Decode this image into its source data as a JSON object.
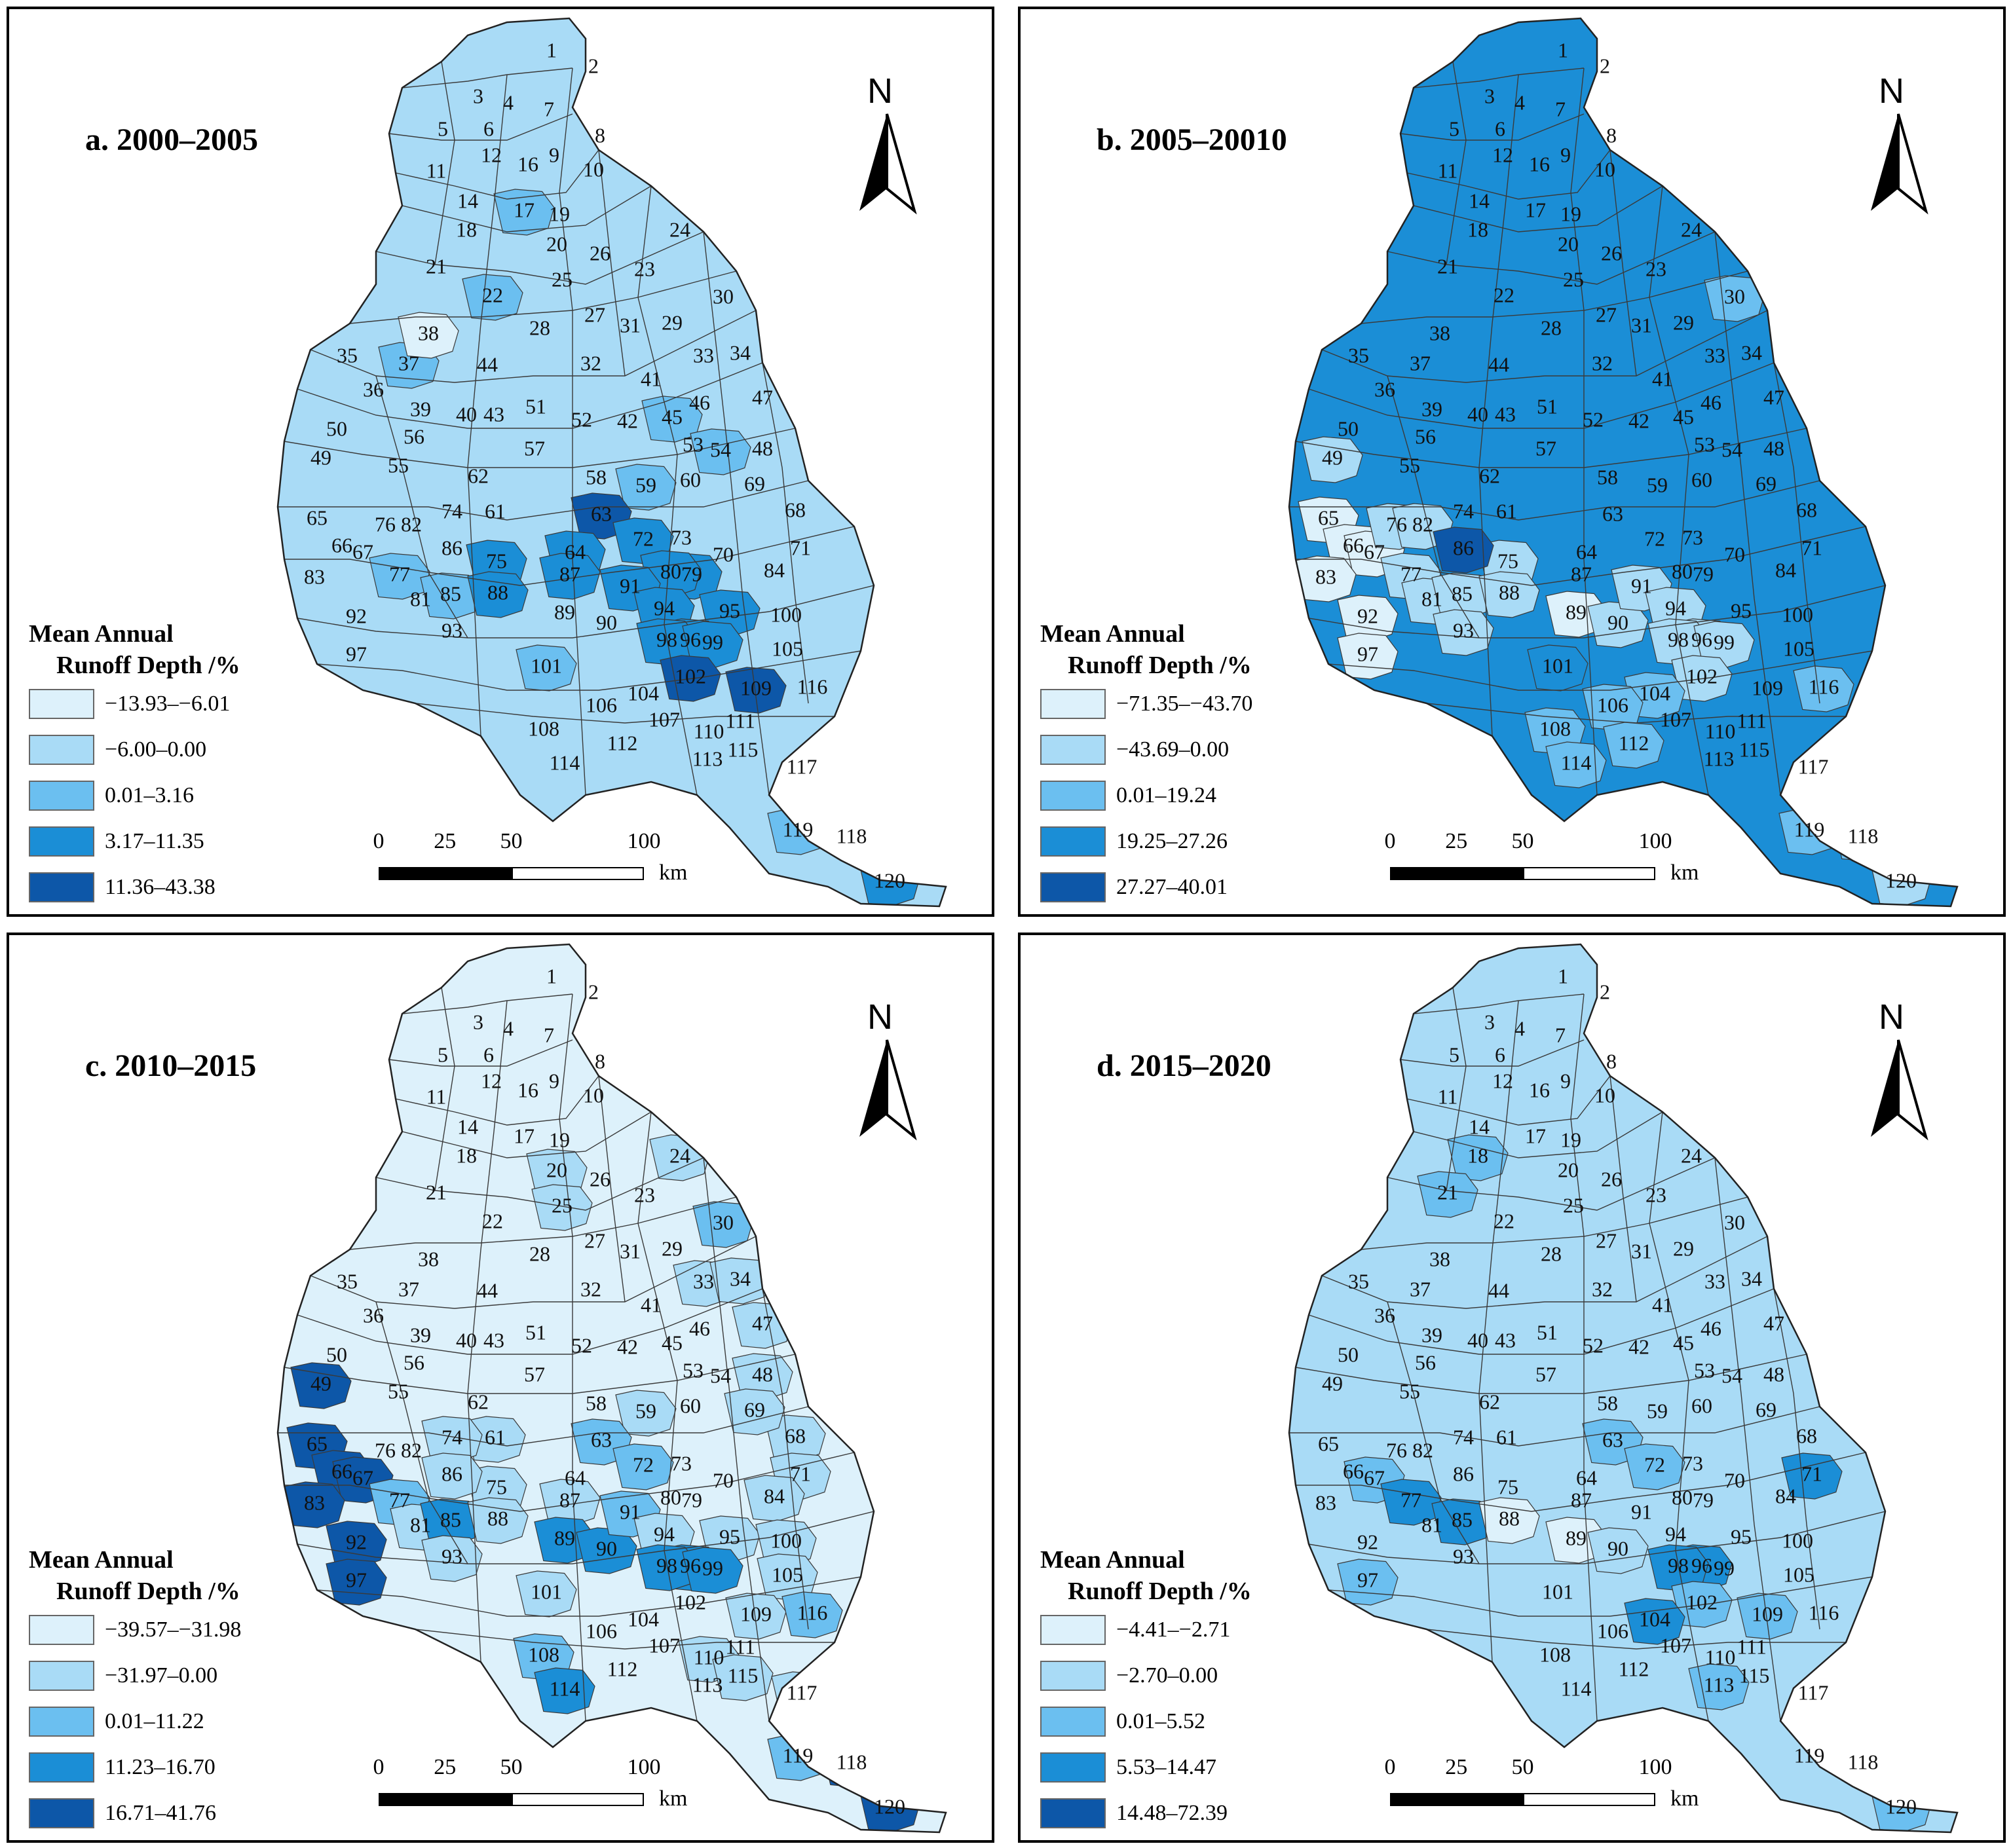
{
  "panels": [
    {
      "id": "a",
      "title": "a. 2000–2005",
      "legend": {
        "title_line1": "Mean Annual",
        "title_line2": "Runoff Depth /%",
        "classes": [
          {
            "label": "−13.93–−6.01",
            "color": "#ddf1fb"
          },
          {
            "label": "−6.00–0.00",
            "color": "#a9dbf6"
          },
          {
            "label": "0.01–3.16",
            "color": "#6bbff0"
          },
          {
            "label": "3.17–11.35",
            "color": "#1b8ed6"
          },
          {
            "label": "11.36–43.38",
            "color": "#0d57a8"
          }
        ]
      }
    },
    {
      "id": "b",
      "title": "b. 2005–20010",
      "legend": {
        "title_line1": "Mean Annual",
        "title_line2": "Runoff Depth /%",
        "classes": [
          {
            "label": "−71.35–−43.70",
            "color": "#ddf1fb"
          },
          {
            "label": "−43.69–0.00",
            "color": "#a9dbf6"
          },
          {
            "label": "0.01–19.24",
            "color": "#6bbff0"
          },
          {
            "label": "19.25–27.26",
            "color": "#1b8ed6"
          },
          {
            "label": "27.27–40.01",
            "color": "#0d57a8"
          }
        ]
      }
    },
    {
      "id": "c",
      "title": "c. 2010–2015",
      "legend": {
        "title_line1": "Mean Annual",
        "title_line2": "Runoff Depth /%",
        "classes": [
          {
            "label": "−39.57–−31.98",
            "color": "#ddf1fb"
          },
          {
            "label": "−31.97–0.00",
            "color": "#a9dbf6"
          },
          {
            "label": "0.01–11.22",
            "color": "#6bbff0"
          },
          {
            "label": "11.23–16.70",
            "color": "#1b8ed6"
          },
          {
            "label": "16.71–41.76",
            "color": "#0d57a8"
          }
        ]
      }
    },
    {
      "id": "d",
      "title": "d. 2015–2020",
      "legend": {
        "title_line1": "Mean Annual",
        "title_line2": "Runoff Depth /%",
        "classes": [
          {
            "label": "−4.41–−2.71",
            "color": "#ddf1fb"
          },
          {
            "label": "−2.70–0.00",
            "color": "#a9dbf6"
          },
          {
            "label": "0.01–5.52",
            "color": "#6bbff0"
          },
          {
            "label": "5.53–14.47",
            "color": "#1b8ed6"
          },
          {
            "label": "14.48–72.39",
            "color": "#0d57a8"
          }
        ]
      }
    }
  ],
  "north_label": "N",
  "scale": {
    "ticks": [
      "0",
      "25",
      "50",
      "100"
    ],
    "tick_values": [
      0,
      25,
      50,
      100
    ],
    "unit": "km"
  },
  "subbasin_labels": [
    "1",
    "2",
    "3",
    "4",
    "5",
    "6",
    "7",
    "8",
    "9",
    "10",
    "11",
    "12",
    "14",
    "16",
    "17",
    "18",
    "19",
    "20",
    "21",
    "22",
    "23",
    "24",
    "25",
    "26",
    "27",
    "28",
    "29",
    "30",
    "31",
    "32",
    "33",
    "34",
    "35",
    "36",
    "37",
    "38",
    "39",
    "40",
    "41",
    "42",
    "43",
    "44",
    "45",
    "46",
    "47",
    "48",
    "49",
    "50",
    "51",
    "52",
    "53",
    "54",
    "55",
    "56",
    "57",
    "58",
    "59",
    "60",
    "61",
    "62",
    "63",
    "64",
    "65",
    "66",
    "67",
    "68",
    "69",
    "70",
    "71",
    "72",
    "73",
    "74",
    "75",
    "76",
    "77",
    "79",
    "80",
    "81",
    "82",
    "83",
    "84",
    "85",
    "86",
    "87",
    "88",
    "89",
    "90",
    "91",
    "92",
    "93",
    "94",
    "95",
    "96",
    "97",
    "98",
    "99",
    "100",
    "101",
    "102",
    "104",
    "105",
    "106",
    "107",
    "108",
    "109",
    "110",
    "111",
    "112",
    "113",
    "114",
    "115",
    "116",
    "117",
    "118",
    "119",
    "120"
  ],
  "subbasin_classes": {
    "a": {
      "default": 1,
      "overrides": {
        "17": 2,
        "22": 2,
        "37": 2,
        "38": 0,
        "45": 2,
        "54": 2,
        "59": 2,
        "63": 4,
        "64": 3,
        "72": 3,
        "75": 3,
        "80": 3,
        "79": 3,
        "85": 2,
        "87": 3,
        "88": 3,
        "91": 3,
        "94": 3,
        "95": 3,
        "96": 3,
        "98": 3,
        "99": 3,
        "101": 2,
        "102": 4,
        "109": 4,
        "119": 2,
        "120": 3,
        "77": 2
      }
    },
    "b": {
      "default": 3,
      "overrides": {
        "30": 2,
        "49": 1,
        "65": 0,
        "66": 0,
        "67": 0,
        "83": 0,
        "92": 0,
        "97": 0,
        "76": 1,
        "77": 1,
        "82": 1,
        "86": 4,
        "75": 1,
        "81": 1,
        "85": 1,
        "88": 1,
        "93": 1,
        "89": 0,
        "90": 1,
        "91": 1,
        "94": 1,
        "98": 1,
        "96": 1,
        "99": 1,
        "102": 1,
        "101": 3,
        "104": 2,
        "106": 2,
        "108": 2,
        "112": 2,
        "114": 2,
        "116": 2,
        "118": 2,
        "119": 2,
        "120": 1
      }
    },
    "c": {
      "default": 0,
      "overrides": {
        "30": 2,
        "25": 1,
        "20": 1,
        "24": 1,
        "33": 1,
        "34": 1,
        "47": 1,
        "48": 1,
        "69": 1,
        "68": 1,
        "71": 1,
        "84": 1,
        "100": 1,
        "105": 1,
        "95": 1,
        "116": 2,
        "117": 1,
        "119": 2,
        "120": 4,
        "118": 4,
        "49": 4,
        "65": 4,
        "66": 4,
        "83": 4,
        "92": 4,
        "97": 4,
        "67": 4,
        "77": 2,
        "85": 3,
        "89": 3,
        "90": 3,
        "98": 3,
        "96": 3,
        "99": 3,
        "63": 2,
        "72": 2,
        "91": 2,
        "94": 1,
        "108": 2,
        "114": 3,
        "109": 1,
        "115": 1,
        "110": 1,
        "101": 1,
        "93": 1,
        "88": 1,
        "75": 1,
        "86": 1,
        "87": 1,
        "74": 1,
        "61": 1,
        "81": 1,
        "59": 1
      }
    },
    "d": {
      "default": 1,
      "overrides": {
        "18": 2,
        "21": 2,
        "77": 3,
        "85": 3,
        "67": 2,
        "97": 2,
        "63": 2,
        "72": 2,
        "71": 3,
        "98": 3,
        "96": 3,
        "102": 2,
        "104": 3,
        "109": 2,
        "113": 2,
        "120": 2,
        "88": 0,
        "89": 0,
        "90": 1
      }
    }
  }
}
